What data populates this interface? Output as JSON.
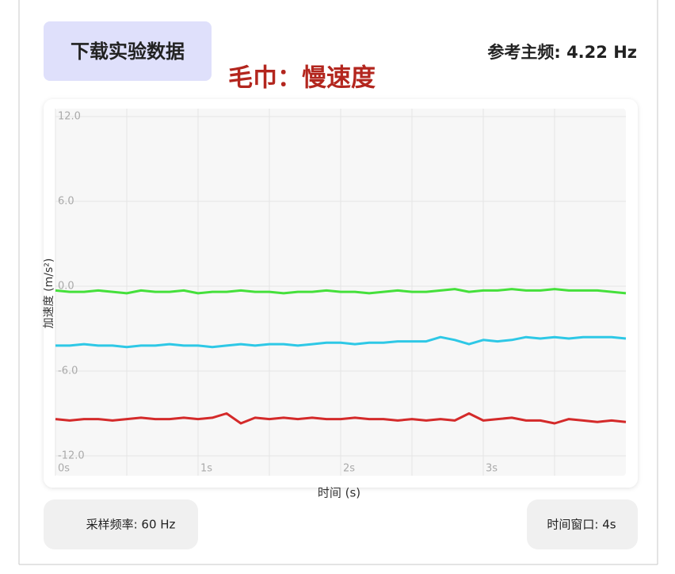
{
  "header": {
    "button": "下载实验数据",
    "frequency": "参考主频: 4.22 Hz",
    "annotation": "毛巾：慢速度"
  },
  "chart_data": {
    "type": "line",
    "ylabel": "加速度 (m/s²)",
    "xlabel": "时间 (s)",
    "xlim": [
      0,
      4
    ],
    "ylim": [
      -12,
      12
    ],
    "xticks": [
      {
        "value": 0,
        "label": "0s"
      },
      {
        "value": 1,
        "label": "1s"
      },
      {
        "value": 2,
        "label": "2s"
      },
      {
        "value": 3,
        "label": "3s"
      }
    ],
    "minor_xticks": [
      0.5,
      1.5,
      2.5,
      3.5
    ],
    "yticks": [
      {
        "value": -12,
        "label": "-12.0"
      },
      {
        "value": -6,
        "label": "-6.0"
      },
      {
        "value": 0,
        "label": "0.0"
      },
      {
        "value": 6,
        "label": "6.0"
      },
      {
        "value": 12,
        "label": "12.0"
      }
    ],
    "grid": true,
    "x": [
      0,
      0.1,
      0.2,
      0.3,
      0.4,
      0.5,
      0.6,
      0.7,
      0.8,
      0.9,
      1,
      1.1,
      1.2,
      1.3,
      1.4,
      1.5,
      1.6,
      1.7,
      1.8,
      1.9,
      2,
      2.1,
      2.2,
      2.3,
      2.4,
      2.5,
      2.6,
      2.7,
      2.8,
      2.9,
      3,
      3.1,
      3.2,
      3.3,
      3.4,
      3.5,
      3.6,
      3.7,
      3.8,
      3.9,
      4
    ],
    "series": [
      {
        "color": "#45e03b",
        "values": [
          -0.3,
          -0.4,
          -0.4,
          -0.3,
          -0.4,
          -0.5,
          -0.3,
          -0.4,
          -0.4,
          -0.3,
          -0.5,
          -0.4,
          -0.4,
          -0.3,
          -0.4,
          -0.4,
          -0.5,
          -0.4,
          -0.4,
          -0.3,
          -0.4,
          -0.4,
          -0.5,
          -0.4,
          -0.3,
          -0.4,
          -0.4,
          -0.3,
          -0.2,
          -0.4,
          -0.3,
          -0.3,
          -0.2,
          -0.3,
          -0.3,
          -0.2,
          -0.3,
          -0.3,
          -0.3,
          -0.4,
          -0.5
        ]
      },
      {
        "color": "#2ec8e6",
        "values": [
          -4.2,
          -4.2,
          -4.1,
          -4.2,
          -4.2,
          -4.3,
          -4.2,
          -4.2,
          -4.1,
          -4.2,
          -4.2,
          -4.3,
          -4.2,
          -4.1,
          -4.2,
          -4.1,
          -4.1,
          -4.2,
          -4.1,
          -4.0,
          -4.0,
          -4.1,
          -4.0,
          -4.0,
          -3.9,
          -3.9,
          -3.9,
          -3.6,
          -3.8,
          -4.1,
          -3.8,
          -3.9,
          -3.8,
          -3.6,
          -3.7,
          -3.6,
          -3.7,
          -3.6,
          -3.6,
          -3.6,
          -3.7
        ]
      },
      {
        "color": "#d42a2a",
        "values": [
          -9.4,
          -9.5,
          -9.4,
          -9.4,
          -9.5,
          -9.4,
          -9.3,
          -9.4,
          -9.4,
          -9.3,
          -9.4,
          -9.3,
          -9.0,
          -9.7,
          -9.3,
          -9.4,
          -9.3,
          -9.4,
          -9.3,
          -9.4,
          -9.4,
          -9.3,
          -9.4,
          -9.4,
          -9.5,
          -9.4,
          -9.5,
          -9.4,
          -9.5,
          -9.0,
          -9.5,
          -9.4,
          -9.3,
          -9.5,
          -9.5,
          -9.7,
          -9.4,
          -9.5,
          -9.6,
          -9.5,
          -9.6
        ]
      }
    ]
  },
  "footer": {
    "sampling": "采样频率: 60 Hz",
    "window": "时间窗口: 4s"
  }
}
